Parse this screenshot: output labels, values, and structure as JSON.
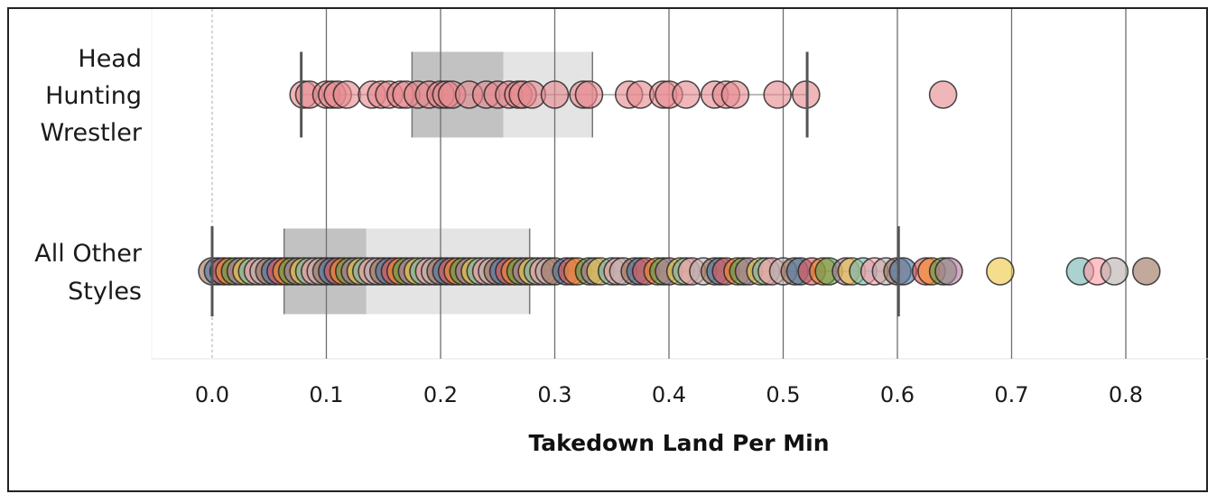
{
  "chart_data": {
    "type": "scatter",
    "subtype": "box-and-whisker jitter plot",
    "xlabel": "Takedown Land Per Min",
    "xlim": [
      -0.053,
      0.87
    ],
    "xticks": [
      "0.0",
      "0.1",
      "0.2",
      "0.3",
      "0.4",
      "0.5",
      "0.6",
      "0.7",
      "0.8"
    ],
    "grid": "vertical",
    "rows": [
      {
        "label_lines": [
          "Head",
          "Hunting",
          "Wrestler"
        ],
        "whisker_low": 0.078,
        "q1": 0.175,
        "median": 0.255,
        "q3": 0.333,
        "whisker_high": 0.521,
        "points": [
          0.08,
          0.085,
          0.1,
          0.105,
          0.11,
          0.118,
          0.14,
          0.148,
          0.155,
          0.165,
          0.17,
          0.18,
          0.19,
          0.2,
          0.205,
          0.21,
          0.225,
          0.24,
          0.25,
          0.26,
          0.268,
          0.272,
          0.28,
          0.3,
          0.325,
          0.33,
          0.365,
          0.375,
          0.395,
          0.4,
          0.415,
          0.44,
          0.45,
          0.458,
          0.495,
          0.52,
          0.64
        ]
      },
      {
        "label_lines": [
          "All Other",
          "Styles"
        ],
        "whisker_low": 0.0,
        "q1": 0.063,
        "median": 0.135,
        "q3": 0.278,
        "whisker_high": 0.601,
        "points": [
          0.0,
          0.005,
          0.01,
          0.015,
          0.02,
          0.025,
          0.03,
          0.035,
          0.04,
          0.045,
          0.05,
          0.055,
          0.06,
          0.065,
          0.07,
          0.075,
          0.08,
          0.085,
          0.09,
          0.095,
          0.1,
          0.105,
          0.11,
          0.115,
          0.12,
          0.125,
          0.13,
          0.135,
          0.14,
          0.145,
          0.15,
          0.155,
          0.16,
          0.165,
          0.17,
          0.175,
          0.18,
          0.185,
          0.19,
          0.195,
          0.2,
          0.205,
          0.21,
          0.215,
          0.22,
          0.225,
          0.23,
          0.235,
          0.24,
          0.245,
          0.25,
          0.255,
          0.26,
          0.265,
          0.27,
          0.275,
          0.28,
          0.285,
          0.29,
          0.295,
          0.3,
          0.31,
          0.315,
          0.32,
          0.33,
          0.335,
          0.34,
          0.35,
          0.355,
          0.36,
          0.37,
          0.375,
          0.38,
          0.39,
          0.395,
          0.4,
          0.41,
          0.415,
          0.42,
          0.43,
          0.44,
          0.445,
          0.45,
          0.46,
          0.465,
          0.47,
          0.48,
          0.485,
          0.49,
          0.5,
          0.51,
          0.515,
          0.525,
          0.535,
          0.54,
          0.555,
          0.56,
          0.57,
          0.58,
          0.59,
          0.6,
          0.605,
          0.625,
          0.63,
          0.64,
          0.645,
          0.69,
          0.76,
          0.775,
          0.79,
          0.818
        ]
      }
    ],
    "colors": {
      "head_hunting_point": "#e78a8f",
      "other_palette": [
        "#4e79a7",
        "#59a14f",
        "#76b7b2",
        "#9c755f",
        "#f28e2b",
        "#edc948",
        "#bab0ac",
        "#e15759",
        "#b07aa1",
        "#ff9da7"
      ],
      "iqr_lower_box": "#bfbfbf",
      "iqr_upper_box": "#e3e3e3",
      "whisker": "#555555",
      "gridline": "#6e6e6e",
      "zero_line": "#aaaaaa"
    }
  }
}
